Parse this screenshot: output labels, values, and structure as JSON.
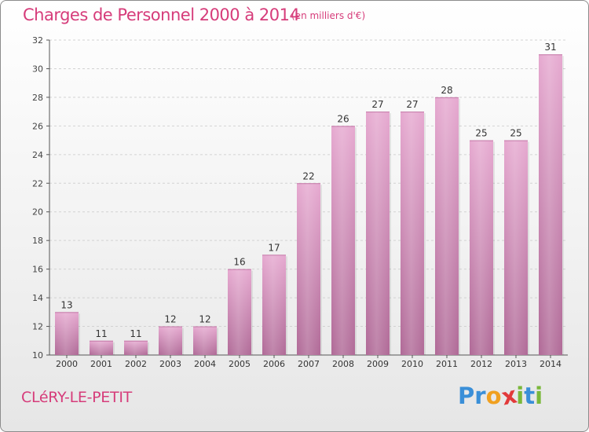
{
  "header": {
    "title": "Charges de Personnel 2000 à 2014",
    "subtitle": "(en milliers d'€)"
  },
  "footer": {
    "commune": "CLéRY-LE-PETIT",
    "logo_text": "Proxiti",
    "logo_letters": [
      {
        "char": "P",
        "color": "#3a8fd8"
      },
      {
        "char": "r",
        "color": "#3a8fd8"
      },
      {
        "char": "o",
        "color": "#f0a020"
      },
      {
        "char": "x",
        "color": "#e23a3a"
      },
      {
        "char": "i",
        "color": "#7ab83a"
      },
      {
        "char": "t",
        "color": "#3a8fd8"
      },
      {
        "char": "i",
        "color": "#7ab83a"
      }
    ]
  },
  "colors": {
    "bar_top": "#e6a9d0",
    "bar_bottom": "#b06a97",
    "accent": "#d63c7a"
  },
  "chart_data": {
    "type": "bar",
    "categories": [
      "2000",
      "2001",
      "2002",
      "2003",
      "2004",
      "2005",
      "2006",
      "2007",
      "2008",
      "2009",
      "2010",
      "2011",
      "2012",
      "2013",
      "2014"
    ],
    "values": [
      13,
      11,
      11,
      12,
      12,
      16,
      17,
      22,
      26,
      27,
      27,
      28,
      25,
      25,
      31
    ],
    "ylim": [
      10,
      32
    ],
    "yticks": [
      10,
      12,
      14,
      16,
      18,
      20,
      22,
      24,
      26,
      28,
      30,
      32
    ],
    "grid": true
  }
}
